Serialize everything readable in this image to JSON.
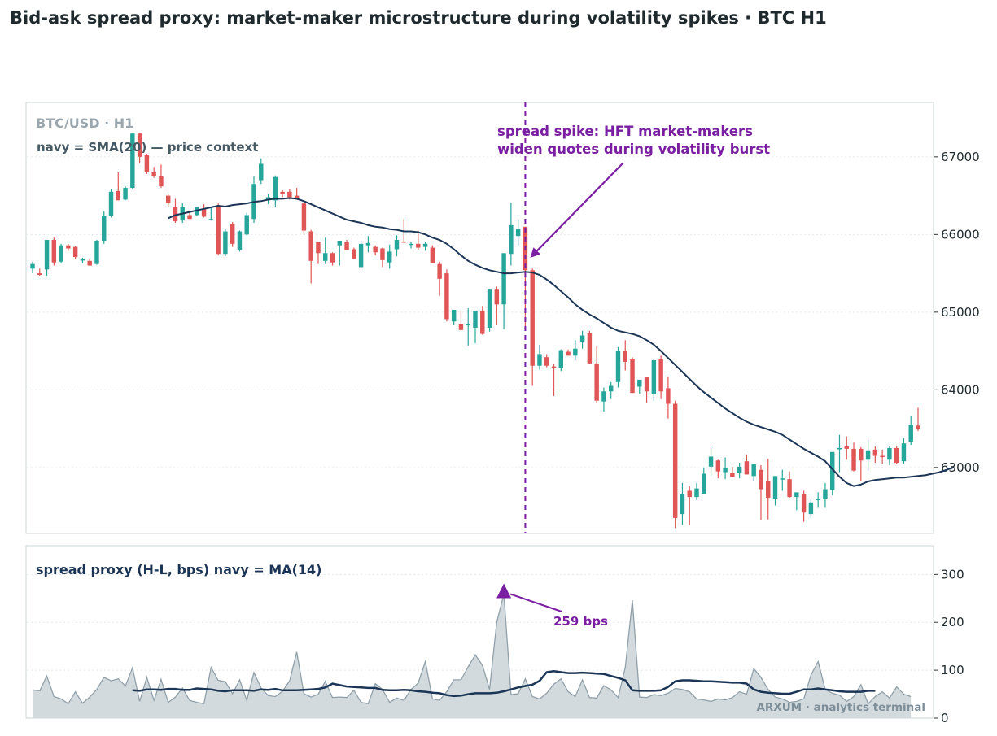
{
  "title": "Bid-ask spread proxy: market-maker microstructure during volatility spikes  ·  BTC H1",
  "colors": {
    "up": "#26a69a",
    "down": "#e05555",
    "sma": "#1b3556",
    "annotation": "#7b1fa2",
    "spread_fill": "#d3dadd",
    "spread_line": "#90a0aa",
    "axes_border": "#cfd4d6",
    "grid": "#e6e9eb"
  },
  "watermark": "ARXUM · analytics terminal",
  "chart_data": [
    {
      "type": "candlestick",
      "label": "BTC/USD · H1",
      "legend_note": "navy = SMA(20) — price context",
      "ylim": [
        62150,
        67700
      ],
      "yticks": [
        63000,
        64000,
        65000,
        66000,
        67000
      ],
      "ytick_labels": [
        "63000",
        "64000",
        "65000",
        "66000",
        "67000"
      ],
      "grid": "horizontal, dotted",
      "candles_ohlc": [
        [
          65560,
          65650,
          65500,
          65620
        ],
        [
          65500,
          65560,
          65470,
          65480
        ],
        [
          65550,
          65560,
          65470,
          65930
        ],
        [
          65930,
          65960,
          65600,
          65640
        ],
        [
          65650,
          65880,
          65630,
          65860
        ],
        [
          65860,
          65880,
          65790,
          65820
        ],
        [
          65840,
          65850,
          65680,
          65710
        ],
        [
          65670,
          65700,
          65630,
          65680
        ],
        [
          65660,
          65690,
          65600,
          65600
        ],
        [
          65620,
          65930,
          65610,
          65920
        ],
        [
          65920,
          66300,
          65880,
          66240
        ],
        [
          66240,
          66580,
          66220,
          66550
        ],
        [
          66560,
          66800,
          66450,
          66440
        ],
        [
          66450,
          66620,
          66440,
          66600
        ],
        [
          66600,
          67300,
          66580,
          67300
        ],
        [
          67300,
          67300,
          66920,
          67000
        ],
        [
          67020,
          67040,
          66780,
          66800
        ],
        [
          66800,
          66870,
          66730,
          66750
        ],
        [
          66750,
          66900,
          66600,
          66620
        ],
        [
          66500,
          66520,
          66360,
          66400
        ],
        [
          66350,
          66460,
          66150,
          66170
        ],
        [
          66180,
          66400,
          66150,
          66350
        ],
        [
          66250,
          66310,
          66200,
          66200
        ],
        [
          66250,
          66360,
          66240,
          66360
        ],
        [
          66330,
          66390,
          66220,
          66230
        ],
        [
          66200,
          66360,
          66180,
          66200
        ],
        [
          66350,
          66400,
          65730,
          65750
        ],
        [
          65750,
          66070,
          65720,
          66040
        ],
        [
          66140,
          66160,
          65840,
          65880
        ],
        [
          65800,
          66050,
          65780,
          66040
        ],
        [
          66000,
          66280,
          65990,
          66250
        ],
        [
          66200,
          66750,
          66150,
          66650
        ],
        [
          66700,
          66980,
          66650,
          66910
        ],
        [
          66440,
          66520,
          66390,
          66480
        ],
        [
          66440,
          66760,
          66350,
          66740
        ],
        [
          66550,
          66570,
          66480,
          66520
        ],
        [
          66550,
          66580,
          66450,
          66480
        ],
        [
          66500,
          66600,
          66450,
          66460
        ],
        [
          66400,
          66430,
          66000,
          66050
        ],
        [
          66040,
          66060,
          65370,
          65660
        ],
        [
          65900,
          65910,
          65620,
          65760
        ],
        [
          65660,
          65960,
          65620,
          65760
        ],
        [
          65760,
          65770,
          65600,
          65640
        ],
        [
          65860,
          65910,
          65600,
          65920
        ],
        [
          65900,
          65930,
          65820,
          65800
        ],
        [
          65810,
          65830,
          65720,
          65690
        ],
        [
          65580,
          65920,
          65560,
          65880
        ],
        [
          65860,
          65980,
          65770,
          65890
        ],
        [
          65840,
          65860,
          65730,
          65770
        ],
        [
          65820,
          65830,
          65580,
          65670
        ],
        [
          65640,
          65870,
          65560,
          65780
        ],
        [
          65810,
          65990,
          65720,
          65930
        ],
        [
          65910,
          66200,
          65900,
          65900
        ],
        [
          65870,
          65900,
          65820,
          65880
        ],
        [
          65880,
          66050,
          65800,
          65830
        ],
        [
          65840,
          65900,
          65790,
          65880
        ],
        [
          65830,
          65860,
          65680,
          65630
        ],
        [
          65620,
          65650,
          65210,
          65430
        ],
        [
          65500,
          65550,
          64880,
          64910
        ],
        [
          64880,
          65030,
          64830,
          65030
        ],
        [
          64850,
          65020,
          64760,
          64770
        ],
        [
          64830,
          65050,
          64570,
          64850
        ],
        [
          64800,
          64950,
          64600,
          65020
        ],
        [
          65020,
          65080,
          64710,
          64720
        ],
        [
          64800,
          65300,
          64750,
          65300
        ],
        [
          65300,
          65330,
          64830,
          65100
        ],
        [
          65100,
          65580,
          64780,
          65760
        ],
        [
          65750,
          66410,
          65600,
          66120
        ],
        [
          65980,
          66190,
          65860,
          66070
        ],
        [
          66100,
          66100,
          64810,
          65540
        ],
        [
          65540,
          65560,
          64050,
          64310
        ],
        [
          64310,
          64580,
          64260,
          64460
        ],
        [
          64420,
          64460,
          64290,
          64310
        ],
        [
          64300,
          64330,
          63920,
          64280
        ],
        [
          64280,
          64520,
          64240,
          64510
        ],
        [
          64490,
          64520,
          64440,
          64440
        ],
        [
          64440,
          64640,
          64380,
          64530
        ],
        [
          64610,
          64760,
          64530,
          64700
        ],
        [
          64730,
          64760,
          64330,
          64340
        ],
        [
          64340,
          64560,
          63830,
          63860
        ],
        [
          63850,
          64030,
          63720,
          63980
        ],
        [
          63980,
          64100,
          63880,
          64050
        ],
        [
          64100,
          64550,
          64030,
          64500
        ],
        [
          64500,
          64640,
          64250,
          64360
        ],
        [
          64400,
          64420,
          63960,
          63960
        ],
        [
          64040,
          64050,
          63950,
          64130
        ],
        [
          64160,
          64150,
          63830,
          63980
        ],
        [
          63950,
          64390,
          63860,
          64380
        ],
        [
          64400,
          64440,
          63880,
          63980
        ],
        [
          64020,
          64170,
          63630,
          63820
        ],
        [
          63820,
          63860,
          62220,
          62350
        ],
        [
          62400,
          62800,
          62260,
          62660
        ],
        [
          62700,
          62760,
          62260,
          62620
        ],
        [
          62620,
          62800,
          62580,
          62730
        ],
        [
          62660,
          63000,
          62660,
          62920
        ],
        [
          63010,
          63280,
          62900,
          63140
        ],
        [
          63090,
          63100,
          62860,
          62950
        ],
        [
          62940,
          63130,
          62850,
          62990
        ],
        [
          62930,
          63010,
          62900,
          62880
        ],
        [
          62930,
          63060,
          62860,
          63010
        ],
        [
          63080,
          63160,
          62920,
          62910
        ],
        [
          62890,
          63000,
          62820,
          63040
        ],
        [
          62970,
          63030,
          62320,
          62720
        ],
        [
          62820,
          63110,
          62330,
          62610
        ],
        [
          62600,
          62800,
          62510,
          62890
        ],
        [
          62860,
          62970,
          62700,
          62860
        ],
        [
          62850,
          62950,
          62610,
          62620
        ],
        [
          62620,
          62660,
          62450,
          62680
        ],
        [
          62660,
          62700,
          62300,
          62420
        ],
        [
          62400,
          62600,
          62350,
          62550
        ],
        [
          62580,
          62680,
          62480,
          62600
        ],
        [
          62600,
          62800,
          62480,
          62720
        ],
        [
          62710,
          63030,
          62640,
          63200
        ],
        [
          63240,
          63420,
          62940,
          63250
        ],
        [
          63270,
          63400,
          63100,
          63240
        ],
        [
          63240,
          63320,
          62950,
          62960
        ],
        [
          63240,
          63260,
          62820,
          63090
        ],
        [
          63100,
          63360,
          62950,
          63220
        ],
        [
          63230,
          63270,
          63060,
          63150
        ],
        [
          63150,
          63230,
          63050,
          63140
        ],
        [
          63100,
          63280,
          63030,
          63250
        ],
        [
          63250,
          63270,
          63040,
          63060
        ],
        [
          63080,
          63380,
          63050,
          63310
        ],
        [
          63330,
          63660,
          63290,
          63550
        ],
        [
          63540,
          63770,
          63470,
          63490
        ]
      ],
      "sma20": [
        66210,
        66250,
        66270,
        66290,
        66310,
        66330,
        66350,
        66370,
        66360,
        66380,
        66390,
        66400,
        66420,
        66430,
        66450,
        66460,
        66460,
        66470,
        66460,
        66430,
        66390,
        66350,
        66310,
        66270,
        66230,
        66190,
        66170,
        66150,
        66120,
        66100,
        66090,
        66070,
        66060,
        66040,
        66040,
        66030,
        66000,
        65960,
        65930,
        65880,
        65810,
        65730,
        65660,
        65610,
        65570,
        65540,
        65520,
        65500,
        65500,
        65510,
        65520,
        65510,
        65480,
        65420,
        65350,
        65270,
        65190,
        65100,
        65030,
        64970,
        64920,
        64860,
        64800,
        64760,
        64740,
        64720,
        64690,
        64640,
        64580,
        64500,
        64410,
        64320,
        64230,
        64140,
        64050,
        63970,
        63900,
        63830,
        63760,
        63700,
        63640,
        63590,
        63550,
        63520,
        63490,
        63460,
        63420,
        63360,
        63300,
        63240,
        63190,
        63140,
        63080,
        62980,
        62880,
        62800,
        62760,
        62780,
        62820,
        62840,
        62850,
        62860,
        62870,
        62870,
        62880,
        62890,
        62900,
        62920,
        62940,
        62970,
        63000
      ],
      "sma_start_index": 19,
      "annotations": [
        {
          "text_lines": [
            "spread spike: HFT market-makers",
            "widen quotes during volatility burst"
          ],
          "target_index": 69,
          "target_price": 65700
        }
      ],
      "marker_line_index": 69
    },
    {
      "type": "area",
      "label": "spread proxy (H-L, bps)   navy = MA(14)",
      "ylim": [
        0,
        360
      ],
      "yticks": [
        0,
        100,
        200,
        300
      ],
      "ytick_labels": [
        "0",
        "100",
        "200",
        "300"
      ],
      "values": [
        59,
        57,
        88,
        45,
        40,
        30,
        55,
        31,
        44,
        60,
        85,
        78,
        82,
        67,
        105,
        35,
        85,
        37,
        81,
        33,
        44,
        63,
        37,
        33,
        30,
        106,
        79,
        76,
        51,
        80,
        37,
        95,
        63,
        47,
        45,
        56,
        78,
        138,
        51,
        44,
        50,
        77,
        43,
        44,
        43,
        58,
        33,
        30,
        72,
        60,
        33,
        42,
        37,
        60,
        73,
        118,
        40,
        37,
        55,
        80,
        80,
        107,
        132,
        110,
        60,
        200,
        259,
        49,
        51,
        82,
        45,
        40,
        52,
        71,
        82,
        55,
        45,
        80,
        43,
        42,
        68,
        59,
        43,
        106,
        246,
        44,
        43,
        49,
        47,
        52,
        62,
        60,
        55,
        40,
        38,
        35,
        40,
        38,
        43,
        55,
        50,
        103,
        85,
        60,
        44,
        40,
        33,
        35,
        40,
        90,
        118,
        60,
        52,
        48,
        35,
        45,
        70,
        30,
        45,
        55,
        42,
        65,
        50,
        45
      ],
      "ma14": [
        58,
        57,
        60,
        60,
        59,
        61,
        61,
        59,
        59,
        62,
        61,
        60,
        57,
        56,
        58,
        58,
        58,
        57,
        60,
        59,
        61,
        58,
        58,
        58,
        59,
        60,
        61,
        64,
        72,
        69,
        66,
        65,
        64,
        63,
        63,
        59,
        58,
        58,
        59,
        58,
        56,
        55,
        53,
        52,
        48,
        46,
        47,
        50,
        52,
        52,
        52,
        53,
        56,
        60,
        64,
        67,
        70,
        78,
        96,
        98,
        96,
        94,
        94,
        95,
        94,
        93,
        92,
        88,
        84,
        79,
        58,
        57,
        57,
        57,
        58,
        65,
        77,
        79,
        79,
        78,
        77,
        77,
        76,
        75,
        74,
        74,
        72,
        60,
        55,
        53,
        52,
        51,
        51,
        55,
        60,
        60,
        62,
        60,
        58,
        56,
        55,
        55,
        55,
        57,
        57
      ],
      "ma_start_index": 14,
      "peak_label": "259 bps",
      "peak_index": 66
    }
  ]
}
